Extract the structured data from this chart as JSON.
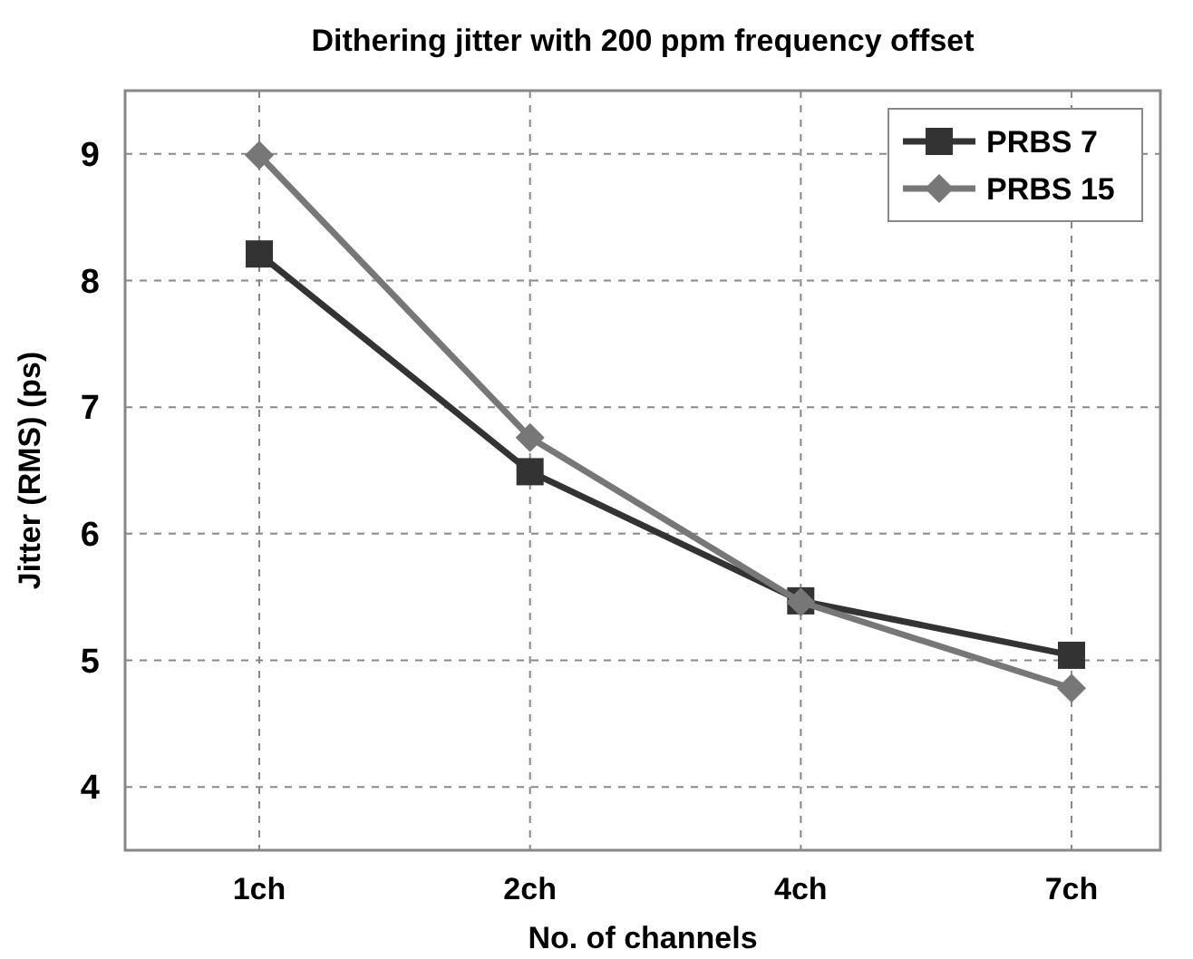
{
  "chart_data": {
    "type": "line",
    "title": "Dithering jitter with 200 ppm frequency offset",
    "xlabel": "No. of channels",
    "ylabel": "Jitter (RMS) (ps)",
    "categories": [
      "1ch",
      "2ch",
      "4ch",
      "7ch"
    ],
    "series": [
      {
        "name": "PRBS 7",
        "color": "#333333",
        "marker": "square",
        "values": [
          8.21,
          6.49,
          5.47,
          5.04
        ]
      },
      {
        "name": "PRBS 15",
        "color": "#777777",
        "marker": "diamond",
        "values": [
          8.99,
          6.76,
          5.46,
          4.78
        ]
      }
    ],
    "ylim": [
      3.5,
      9.5
    ],
    "yticks": [
      4,
      5,
      6,
      7,
      8,
      9
    ],
    "grid": true,
    "legend": "top right"
  }
}
